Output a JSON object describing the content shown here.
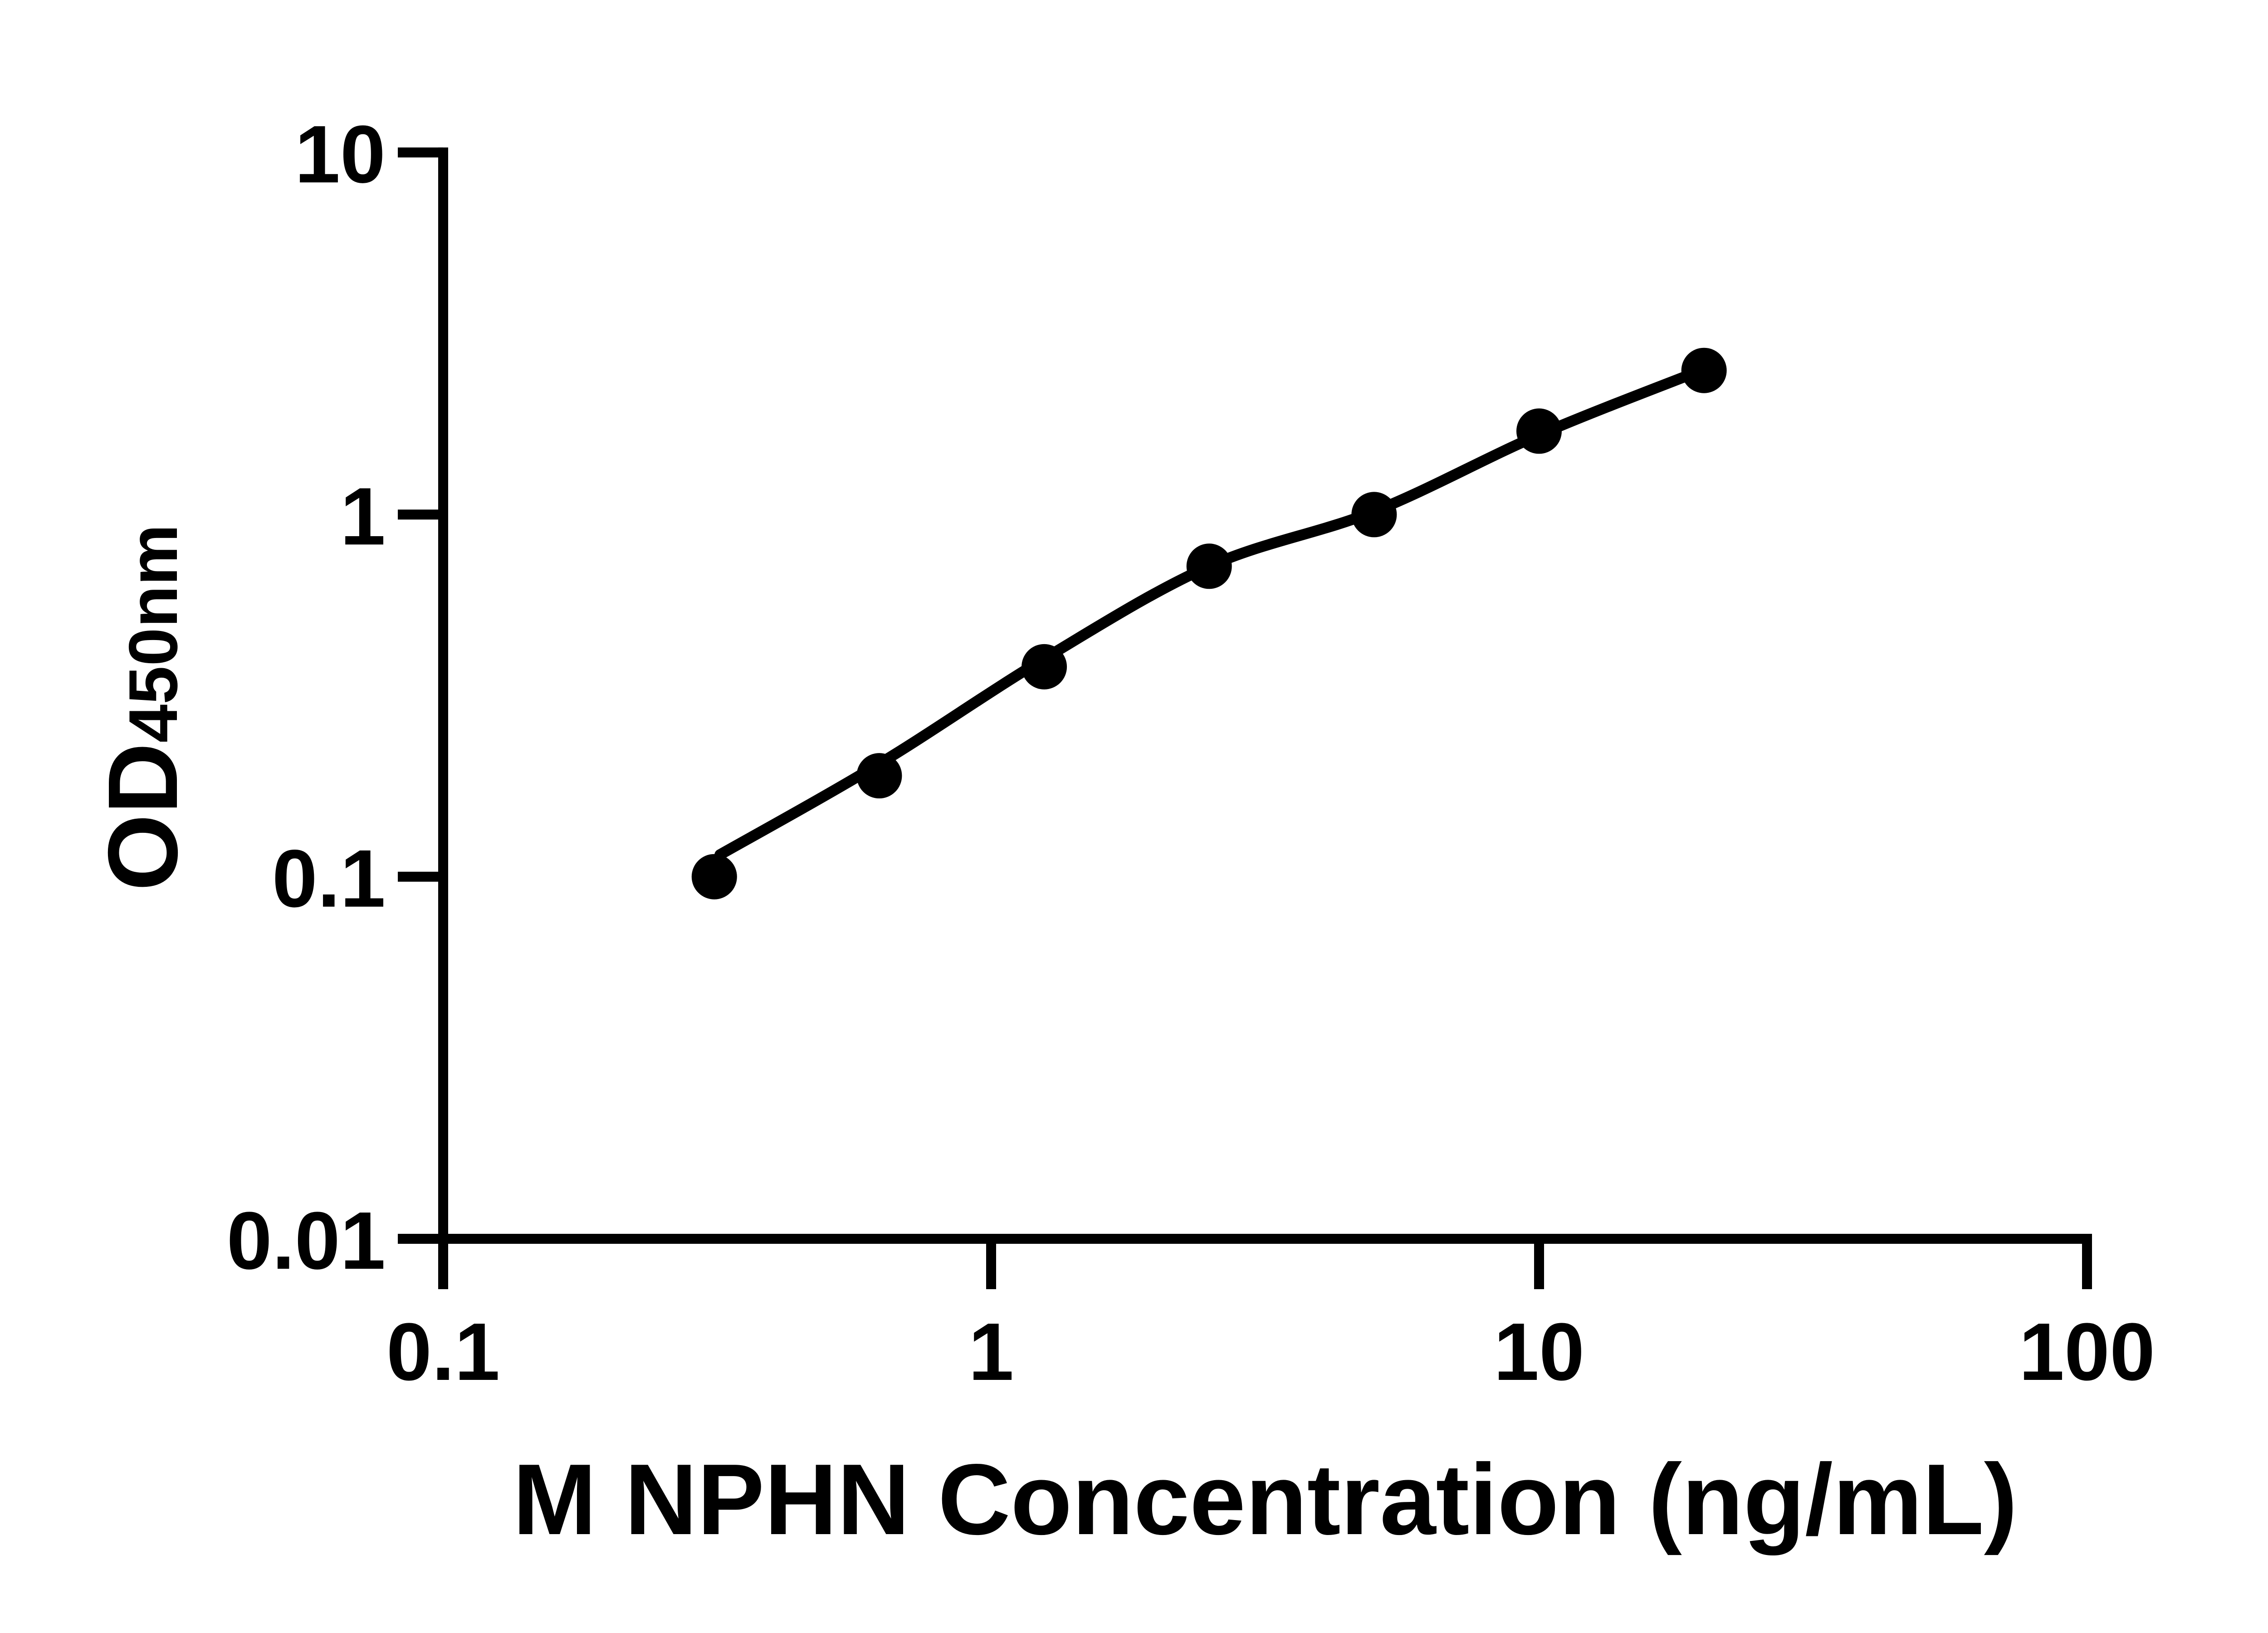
{
  "figure": {
    "background_color": "#ffffff",
    "ink_color": "#000000",
    "description": "ELISA standard curve, log-log scatter plot with fitted line"
  },
  "chart_data": {
    "type": "scatter",
    "title": "",
    "xlabel": "M NPHN Concentration (ng/mL)",
    "ylabel_main": "OD",
    "ylabel_sub": "450nm",
    "x_scale": "log",
    "y_scale": "log",
    "xlim": [
      0.1,
      100
    ],
    "ylim": [
      0.01,
      10
    ],
    "grid": false,
    "legend": null,
    "x_ticks": [
      {
        "value": 0.1,
        "label": "0.1"
      },
      {
        "value": 1,
        "label": "1"
      },
      {
        "value": 10,
        "label": "10"
      },
      {
        "value": 100,
        "label": "100"
      }
    ],
    "y_ticks": [
      {
        "value": 10,
        "label": "10"
      },
      {
        "value": 1,
        "label": "1"
      },
      {
        "value": 0.1,
        "label": "0.1"
      },
      {
        "value": 0.01,
        "label": "0.01"
      }
    ],
    "series": [
      {
        "name": "standard-points",
        "marker": "filled-circle",
        "color": "#000000",
        "x": [
          0.3125,
          0.625,
          1.25,
          2.5,
          5,
          10,
          20
        ],
        "y": [
          0.1,
          0.19,
          0.38,
          0.72,
          1.0,
          1.7,
          2.5
        ]
      }
    ],
    "fit_curve": {
      "name": "fitted-standard-curve",
      "color": "#000000",
      "x": [
        0.32,
        0.625,
        1.25,
        2.5,
        5,
        10,
        20
      ],
      "y": [
        0.115,
        0.205,
        0.4,
        0.72,
        1.02,
        1.66,
        2.52
      ]
    }
  }
}
